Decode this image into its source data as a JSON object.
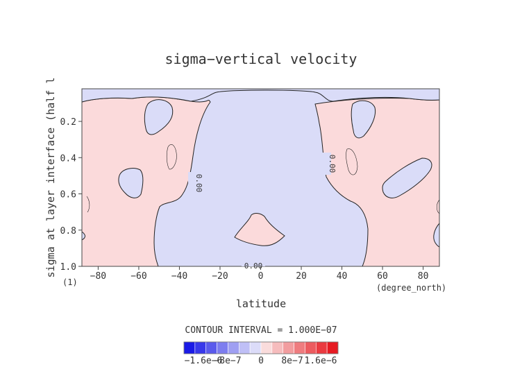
{
  "chart_data": {
    "type": "heatmap",
    "title": "sigma−vertical velocity",
    "xlabel": "latitude",
    "xunit": "(degree_north)",
    "ylabel": "sigma at layer interface (half l",
    "yunit": "(1)",
    "xlim": [
      -88,
      88
    ],
    "ylim": [
      1.0,
      0.02
    ],
    "xticks": [
      -80,
      -60,
      -40,
      -20,
      0,
      20,
      40,
      60,
      80
    ],
    "xtick_labels": [
      "−80",
      "−60",
      "−40",
      "−20",
      "0",
      "20",
      "40",
      "60",
      "80"
    ],
    "yticks": [
      0.2,
      0.4,
      0.6,
      0.8,
      1.0
    ],
    "ytick_labels": [
      "0.2",
      "0.4",
      "0.6",
      "0.8",
      "1.0"
    ],
    "contour_interval_text": "CONTOUR INTERVAL = 1.000E−07",
    "contour_labels": [
      {
        "text": "0.00",
        "x": -34,
        "y": 0.55,
        "rotate": 90
      },
      {
        "text": "0.00",
        "x": 32,
        "y": 0.44,
        "rotate": 90
      },
      {
        "text": "0.00",
        "x": -4,
        "y": 0.995,
        "rotate": 0
      }
    ],
    "colors": {
      "negative": "#dadcf8",
      "positive": "#fbdadb"
    },
    "colorbar": {
      "colors": [
        "#1a1ae6",
        "#3838ea",
        "#5a5aec",
        "#7d7def",
        "#9f9ff2",
        "#bfbff6",
        "#dcdcf9",
        "#fadcdc",
        "#f6bcbd",
        "#f29d9f",
        "#ef7c7f",
        "#ec5b5f",
        "#ea3a40",
        "#e61a22"
      ],
      "labels": [
        "−1.6e−6",
        "−8e−7",
        "0",
        "8e−7",
        "1.6e−6"
      ]
    }
  }
}
